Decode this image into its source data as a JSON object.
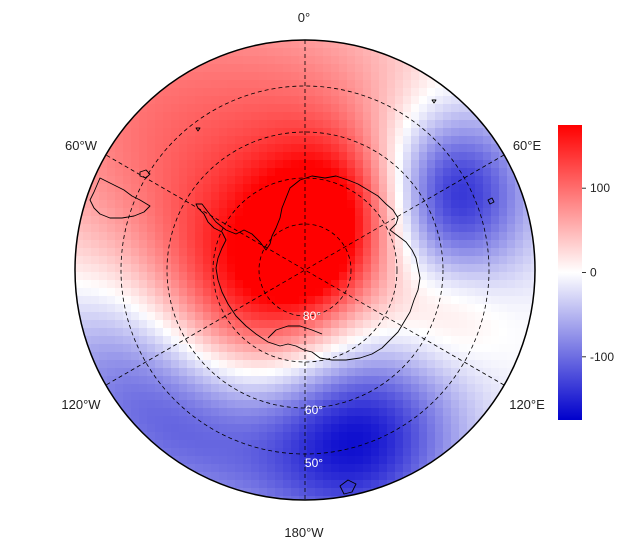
{
  "projection": "south-polar-stereographic",
  "longitude_labels": {
    "top": "0°",
    "upper_right": "60°E",
    "lower_right": "120°E",
    "bottom": "180°W",
    "lower_left": "120°W",
    "upper_left": "60°W"
  },
  "latitude_labels": [
    "80°",
    "60°",
    "50°"
  ],
  "colorbar": {
    "range": [
      -175,
      175
    ],
    "ticks": [
      {
        "value": 100,
        "label": "100"
      },
      {
        "value": 0,
        "label": "0"
      },
      {
        "value": -100,
        "label": "-100"
      }
    ],
    "colors": {
      "low": "#0000cc",
      "mid": "#ffffff",
      "high": "#ff0000"
    }
  },
  "colors": {
    "coastline": "#000000",
    "graticule": "#000000",
    "frame": "#000000"
  }
}
